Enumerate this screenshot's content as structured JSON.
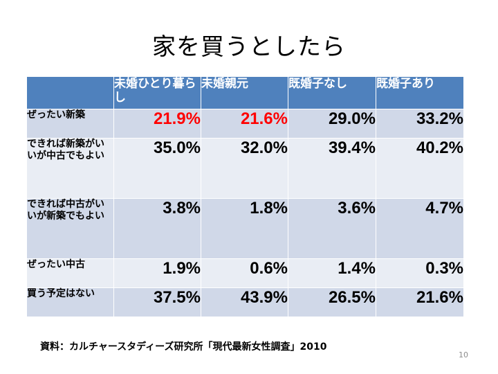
{
  "title": "家を買うとしたら",
  "table": {
    "headers": [
      "",
      "未婚ひとり暮らし",
      "未婚親元",
      "既婚子なし",
      "既婚子あり"
    ],
    "rows": [
      {
        "label": "ぜったい新築",
        "values": [
          "21.9%",
          "21.6%",
          "29.0%",
          "33.2%"
        ]
      },
      {
        "label": "できれば新築がいいが中古でもよい",
        "values": [
          "35.0%",
          "32.0%",
          "39.4%",
          "40.2%"
        ]
      },
      {
        "label": "できれば中古がいいが新築でもよい",
        "values": [
          "3.8%",
          "1.8%",
          "3.6%",
          "4.7%"
        ]
      },
      {
        "label": "ぜったい中古",
        "values": [
          "1.9%",
          "0.6%",
          "1.4%",
          "0.3%"
        ]
      },
      {
        "label": "買う予定はない",
        "values": [
          "37.5%",
          "43.9%",
          "26.5%",
          "21.6%"
        ]
      }
    ],
    "highlight_color": "#ff0000",
    "header_color": "#4f81bd"
  },
  "source": "資料：カルチャースタディーズ研究所「現代最新女性調査」2010",
  "page_number": "10"
}
